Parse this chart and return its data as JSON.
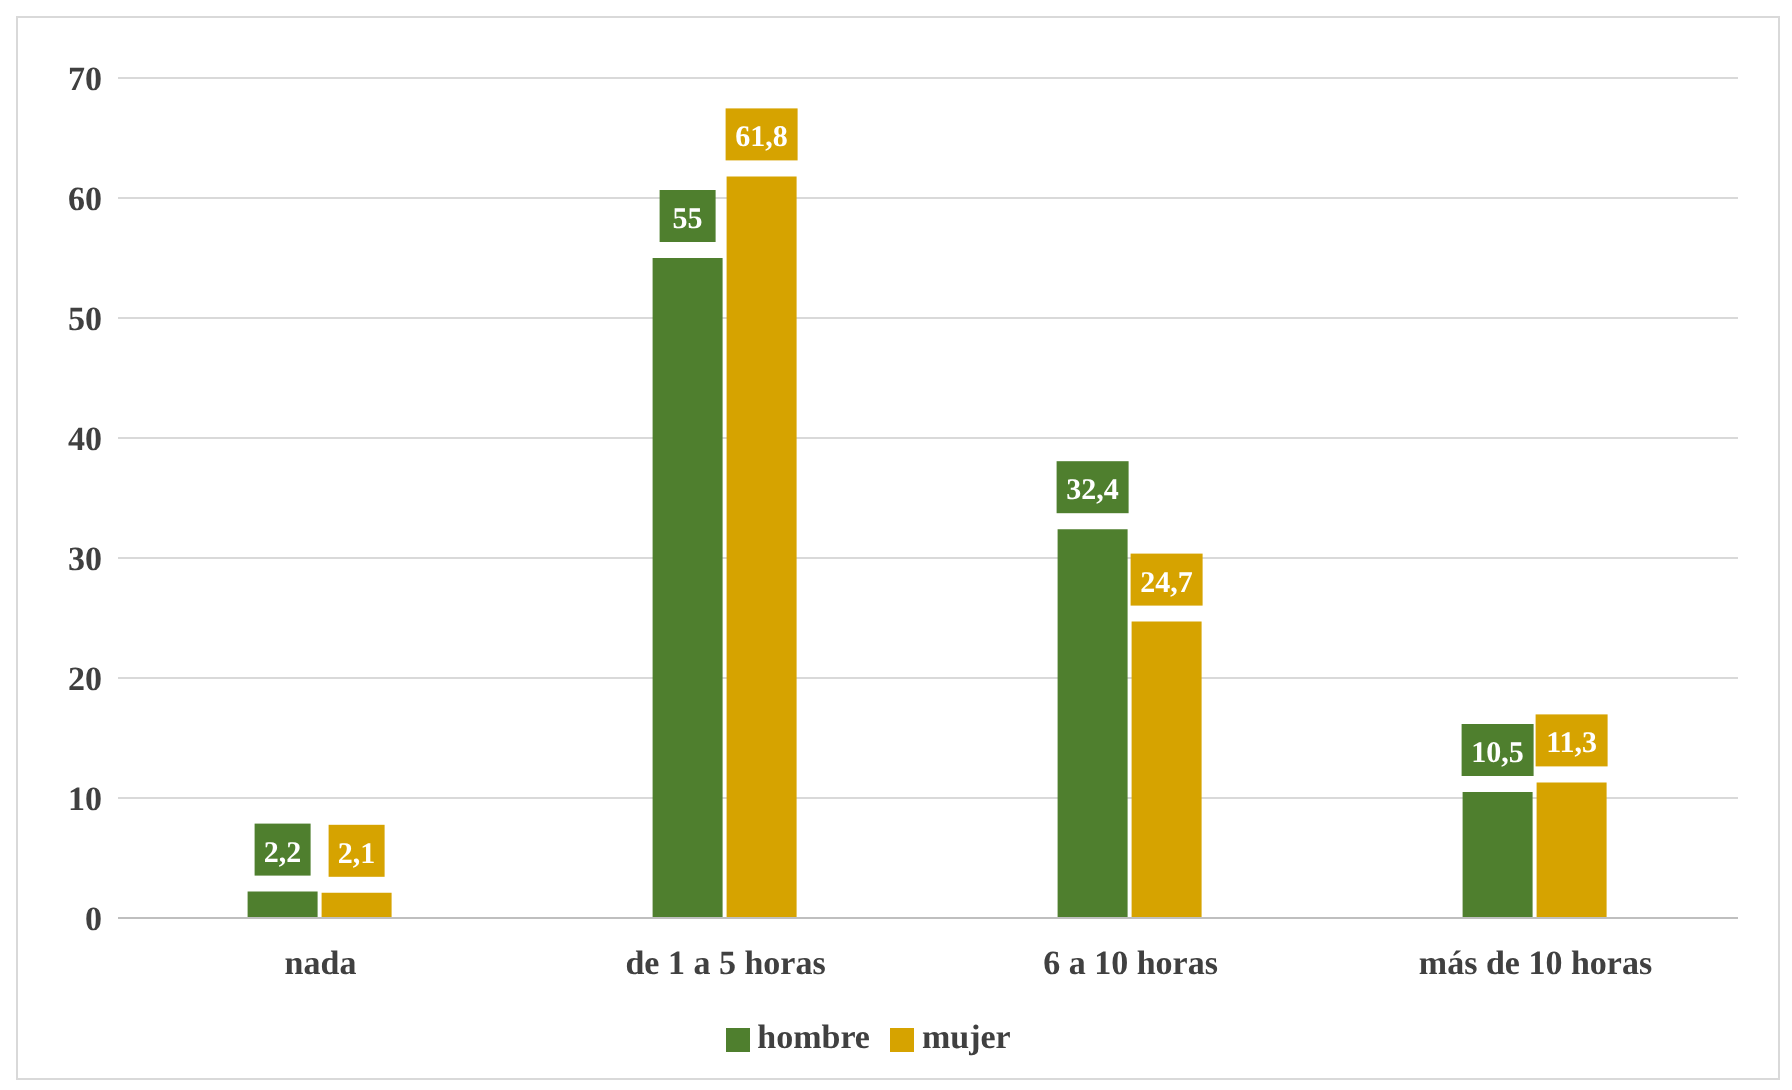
{
  "chart_data": {
    "type": "bar",
    "categories": [
      "nada",
      "de 1 a 5 horas",
      "6 a 10 horas",
      "más de 10 horas"
    ],
    "series": [
      {
        "name": "hombre",
        "color": "#4f7f2e",
        "values": [
          2.2,
          55,
          32.4,
          10.5
        ],
        "value_labels": [
          "2,2",
          "55",
          "32,4",
          "10,5"
        ]
      },
      {
        "name": "mujer",
        "color": "#d6a300",
        "values": [
          2.1,
          61.8,
          24.7,
          11.3
        ],
        "value_labels": [
          "2,1",
          "61,8",
          "24,7",
          "11,3"
        ]
      }
    ],
    "ylim": [
      0,
      70
    ],
    "yticks": [
      0,
      10,
      20,
      30,
      40,
      50,
      60,
      70
    ],
    "grid": "y",
    "legend": "bottom"
  }
}
